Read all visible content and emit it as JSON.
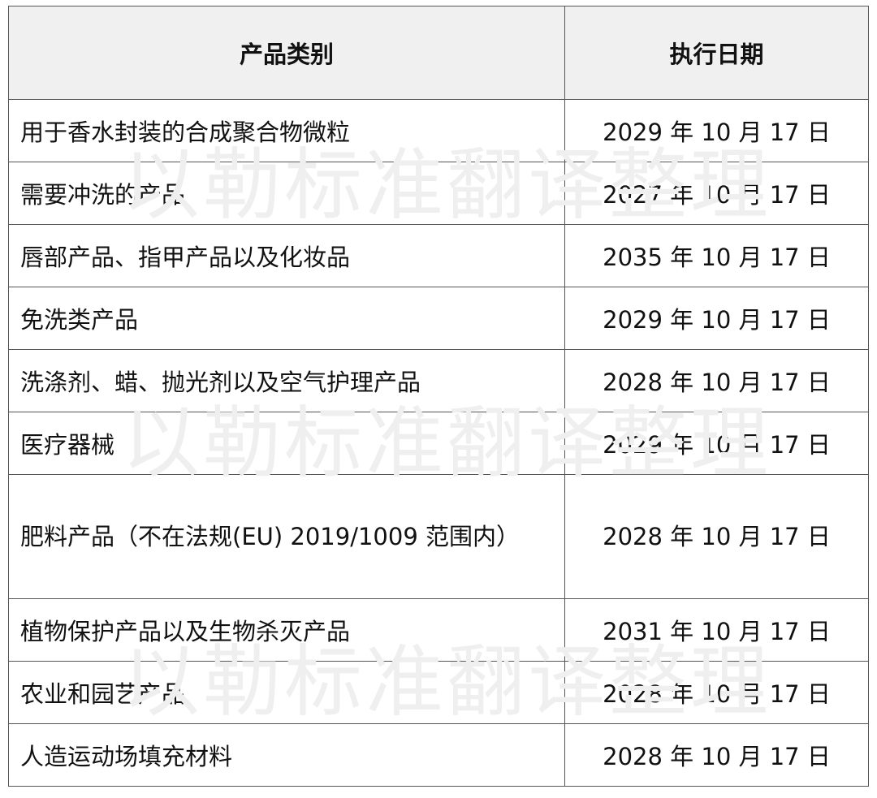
{
  "table": {
    "headers": [
      "产品类别",
      "执行日期"
    ],
    "rows": [
      {
        "category": "用于香水封装的合成聚合物微粒",
        "date": "2029 年 10 月 17 日"
      },
      {
        "category": "需要冲洗的产品",
        "date": "2027 年 10 月 17 日"
      },
      {
        "category": "唇部产品、指甲产品以及化妆品",
        "date": "2035 年 10 月 17 日"
      },
      {
        "category": "免洗类产品",
        "date": "2029 年 10 月 17 日"
      },
      {
        "category": "洗涤剂、蜡、抛光剂以及空气护理产品",
        "date": "2028 年 10 月 17 日"
      },
      {
        "category": "医疗器械",
        "date": "2029 年 10 月 17 日"
      },
      {
        "category": "肥料产品（不在法规(EU) 2019/1009 范围内）",
        "date": "2028 年 10 月 17 日"
      },
      {
        "category": "植物保护产品以及生物杀灭产品",
        "date": "2031 年 10 月 17 日"
      },
      {
        "category": "农业和园艺产品",
        "date": "2028 年 10 月 17 日"
      },
      {
        "category": "人造运动场填充材料",
        "date": "2028 年 10 月 17 日"
      }
    ]
  },
  "watermark": "以勒标准翻译整理"
}
